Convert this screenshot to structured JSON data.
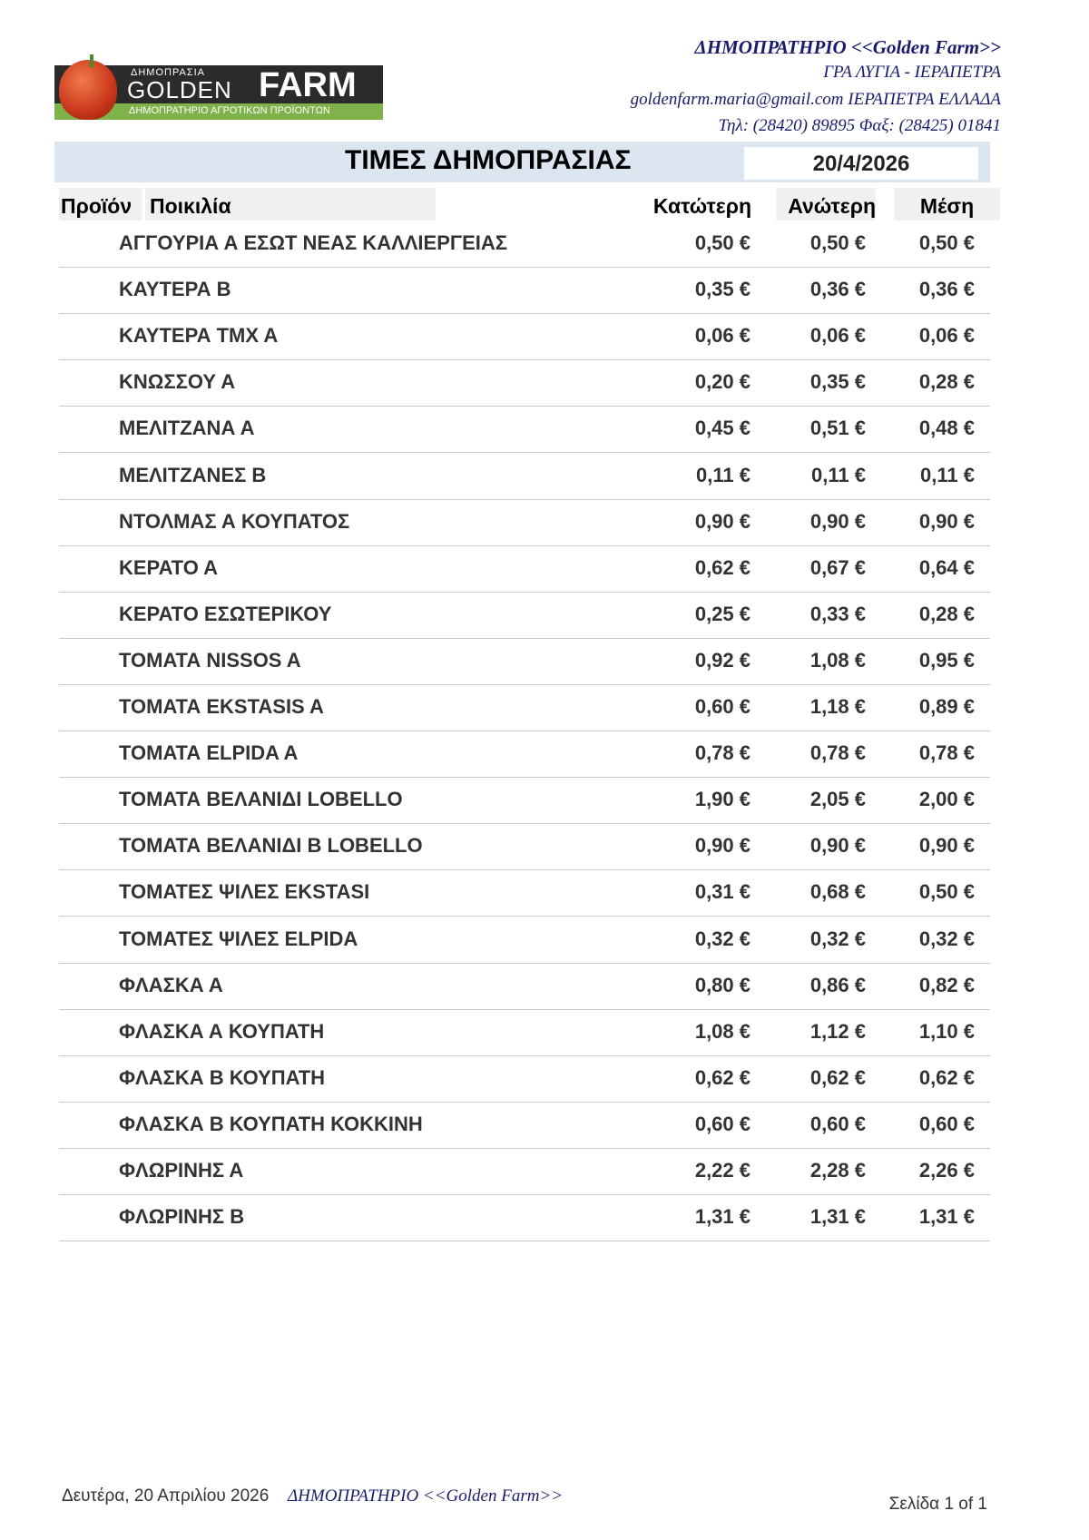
{
  "logo": {
    "line1": "ΔΗΜΟΠΡΑΣΙΑ",
    "line2": "GOLDEN",
    "line3": "FARM",
    "line4": "ΔΗΜΟΠΡΑΤΗΡΙΟ ΑΓΡΟΤΙΚΩΝ ΠΡΟΪΟΝΤΩΝ"
  },
  "header": {
    "company": "ΔΗΜΟΠΡΑΤΗΡΙΟ <<Golden Farm>>",
    "address": "ΓΡΑ ΛΥΓΙΑ - ΙΕΡΑΠΕΤΡΑ",
    "email_line": "goldenfarm.maria@gmail.com ΙΕΡΑΠΕΤΡΑ ΕΛΛΑΔΑ",
    "phone_line": "Τηλ: (28420)  89895  Φαξ: (28425) 01841"
  },
  "title": "ΤΙΜΕΣ ΔΗΜΟΠΡΑΣΙΑΣ",
  "date": "20/4/2026",
  "columns": {
    "product": "Προϊόν",
    "variety": "Ποικιλία",
    "low": "Κατώτερη",
    "high": "Ανώτερη",
    "avg": "Μέση"
  },
  "rows": [
    {
      "name": "ΑΓΓΟΥΡΙΑ Α ΕΣΩΤ ΝΕΑΣ ΚΑΛΛΙΕΡΓΕΙΑΣ",
      "low": "0,50 €",
      "high": "0,50 €",
      "avg": "0,50 €"
    },
    {
      "name": "ΚΑΥΤΕΡΑ Β",
      "low": "0,35 €",
      "high": "0,36 €",
      "avg": "0,36 €"
    },
    {
      "name": "ΚΑΥΤΕΡΑ ΤΜΧ Α",
      "low": "0,06 €",
      "high": "0,06 €",
      "avg": "0,06 €"
    },
    {
      "name": "ΚΝΩΣΣΟΥ Α",
      "low": "0,20 €",
      "high": "0,35 €",
      "avg": "0,28 €"
    },
    {
      "name": "ΜΕΛΙΤΖΑΝΑ Α",
      "low": "0,45 €",
      "high": "0,51 €",
      "avg": "0,48 €"
    },
    {
      "name": "ΜΕΛΙΤΖΑΝΕΣ Β",
      "low": "0,11 €",
      "high": "0,11 €",
      "avg": "0,11 €"
    },
    {
      "name": "ΝΤΟΛΜΑΣ Α ΚΟΥΠΑΤΟΣ",
      "low": "0,90 €",
      "high": "0,90 €",
      "avg": "0,90 €"
    },
    {
      "name": "ΚΕΡΑΤΟ Α",
      "low": "0,62 €",
      "high": "0,67 €",
      "avg": "0,64 €"
    },
    {
      "name": "ΚΕΡΑΤΟ ΕΣΩΤΕΡΙΚΟΥ",
      "low": "0,25 €",
      "high": "0,33 €",
      "avg": "0,28 €"
    },
    {
      "name": "ΤΟΜΑΤΑ NISSOS A",
      "low": "0,92 €",
      "high": "1,08 €",
      "avg": "0,95 €"
    },
    {
      "name": "ΤΟΜΑΤΑ EKSTASIS A",
      "low": "0,60 €",
      "high": "1,18 €",
      "avg": "0,89 €"
    },
    {
      "name": "ΤΟΜΑΤΑ ELPIDA A",
      "low": "0,78 €",
      "high": "0,78 €",
      "avg": "0,78 €"
    },
    {
      "name": "ΤΟΜΑΤΑ ΒΕΛΑΝΙΔΙ LOBELLO",
      "low": "1,90 €",
      "high": "2,05 €",
      "avg": "2,00 €"
    },
    {
      "name": "ΤΟΜΑΤΑ ΒΕΛΑΝΙΔΙ Β LOBELLO",
      "low": "0,90 €",
      "high": "0,90 €",
      "avg": "0,90 €"
    },
    {
      "name": "ΤΟΜΑΤΕΣ ΨΙΛΕΣ EKSTASI",
      "low": "0,31 €",
      "high": "0,68 €",
      "avg": "0,50 €"
    },
    {
      "name": "ΤΟΜΑΤΕΣ ΨΙΛΕΣ ELPIDA",
      "low": "0,32 €",
      "high": "0,32 €",
      "avg": "0,32 €"
    },
    {
      "name": "ΦΛΑΣΚΑ Α",
      "low": "0,80 €",
      "high": "0,86 €",
      "avg": "0,82 €"
    },
    {
      "name": "ΦΛΑΣΚΑ Α ΚΟΥΠΑΤΗ",
      "low": "1,08 €",
      "high": "1,12 €",
      "avg": "1,10 €"
    },
    {
      "name": "ΦΛΑΣΚΑ Β ΚΟΥΠΑΤΗ",
      "low": "0,62 €",
      "high": "0,62 €",
      "avg": "0,62 €"
    },
    {
      "name": "ΦΛΑΣΚΑ Β ΚΟΥΠΑΤΗ ΚΟΚΚΙΝΗ",
      "low": "0,60 €",
      "high": "0,60 €",
      "avg": "0,60 €"
    },
    {
      "name": "ΦΛΩΡΙΝΗΣ Α",
      "low": "2,22 €",
      "high": "2,28 €",
      "avg": "2,26 €"
    },
    {
      "name": "ΦΛΩΡΙΝΗΣ Β",
      "low": "1,31 €",
      "high": "1,31 €",
      "avg": "1,31 €"
    }
  ],
  "footer": {
    "date": "Δευτέρα, 20 Απριλίου 2026",
    "company": "ΔΗΜΟΠΡΑΤΗΡΙΟ <<Golden Farm>>",
    "page": "Σελίδα 1 of 1"
  }
}
